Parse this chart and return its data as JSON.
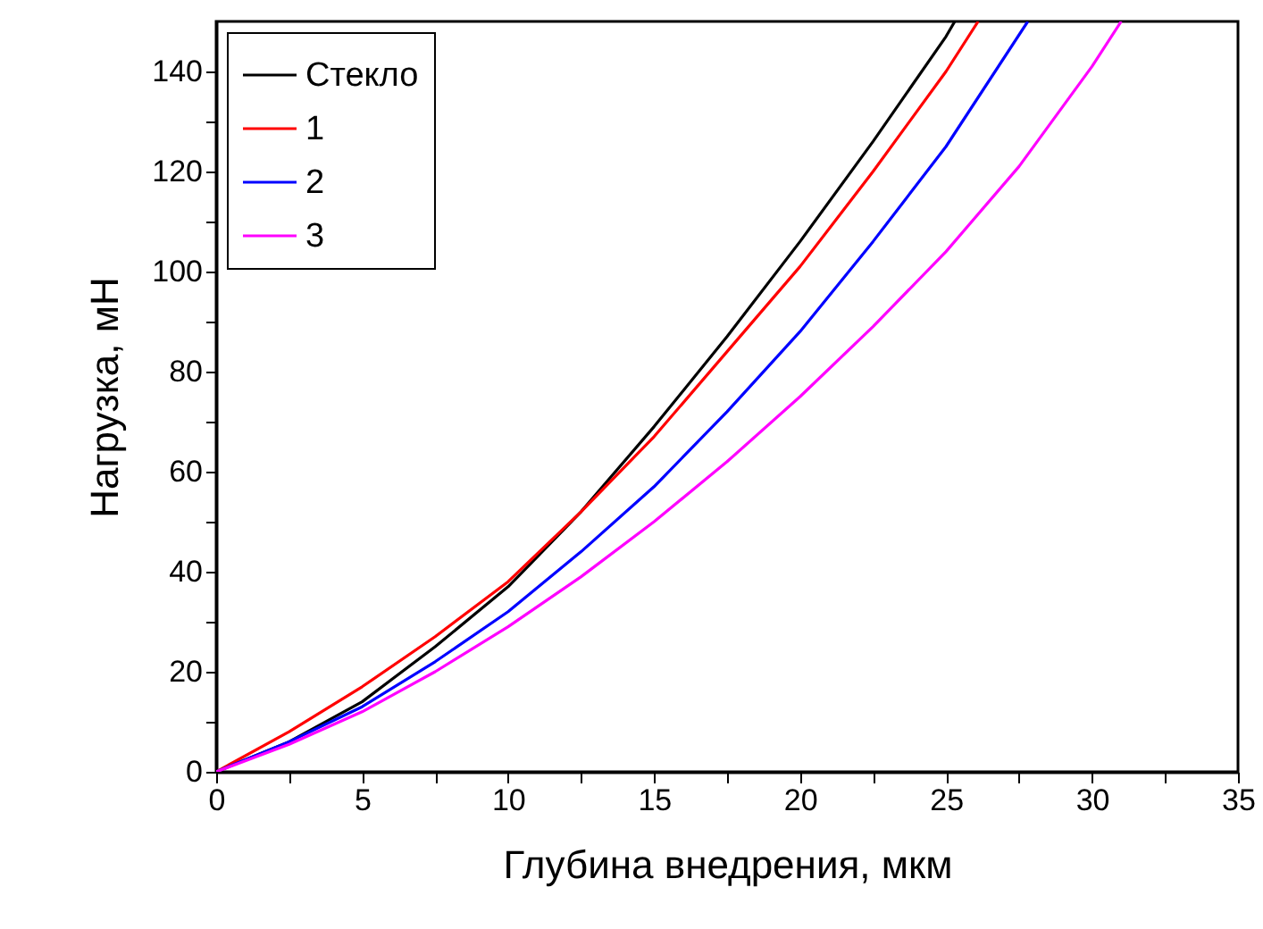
{
  "chart_data": {
    "type": "line",
    "xlabel": "Глубина внедрения, мкм",
    "ylabel": "Нагрузка, мН",
    "xlim": [
      0,
      35
    ],
    "ylim": [
      0,
      150
    ],
    "xticks": [
      0,
      {
        "value": 2.5,
        "label": null
      },
      5,
      {
        "value": 7.5,
        "label": null
      },
      10,
      {
        "value": 12.5,
        "label": null
      },
      15,
      {
        "value": 17.5,
        "label": null
      },
      20,
      {
        "value": 22.5,
        "label": null
      },
      25,
      {
        "value": 27.5,
        "label": null
      },
      30,
      {
        "value": 32.5,
        "label": null
      },
      35
    ],
    "yticks": [
      0,
      {
        "value": 10,
        "label": null
      },
      20,
      {
        "value": 30,
        "label": null
      },
      40,
      {
        "value": 50,
        "label": null
      },
      60,
      {
        "value": 70,
        "label": null
      },
      80,
      {
        "value": 90,
        "label": null
      },
      100,
      {
        "value": 110,
        "label": null
      },
      120,
      {
        "value": 130,
        "label": null
      },
      140
    ],
    "grid": false,
    "legend": "top left",
    "line_style": "solid",
    "series": [
      {
        "name": "Стекло",
        "color": "#000000",
        "x": [
          0,
          2.5,
          5,
          7.5,
          10,
          12.5,
          15,
          17.5,
          20,
          22.5,
          25,
          25.3
        ],
        "values": [
          0,
          6,
          14,
          25,
          37,
          52,
          69,
          87,
          106,
          126,
          147,
          150
        ]
      },
      {
        "name": "1",
        "color": "#ff0000",
        "x": [
          0,
          2.5,
          5,
          7.5,
          10,
          12.5,
          15,
          17.5,
          20,
          22.5,
          25,
          26.1
        ],
        "values": [
          0,
          8,
          17,
          27,
          38,
          52,
          67,
          84,
          101,
          120,
          140,
          150
        ]
      },
      {
        "name": "2",
        "color": "#0000ff",
        "x": [
          0,
          2.5,
          5,
          7.5,
          10,
          12.5,
          15,
          17.5,
          20,
          22.5,
          25,
          27.8
        ],
        "values": [
          0,
          6,
          13,
          22,
          32,
          44,
          57,
          72,
          88,
          106,
          125,
          150
        ]
      },
      {
        "name": "3",
        "color": "#ff00ff",
        "x": [
          0,
          2.5,
          5,
          7.5,
          10,
          12.5,
          15,
          17.5,
          20,
          22.5,
          25,
          27.5,
          30,
          31
        ],
        "values": [
          0,
          5.5,
          12,
          20,
          29,
          39,
          50,
          62,
          75,
          89,
          104,
          121,
          141,
          150
        ]
      }
    ]
  }
}
